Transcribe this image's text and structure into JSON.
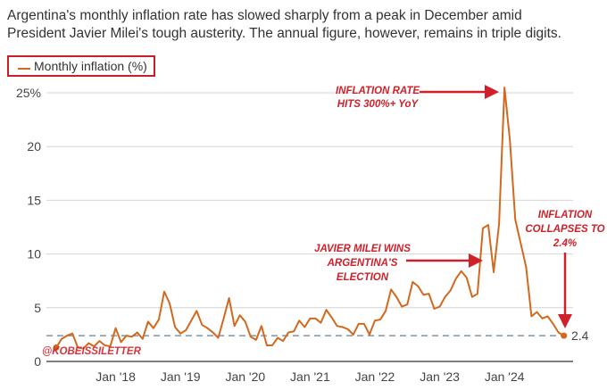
{
  "title_lines": [
    "Argentina's monthly inflation rate has slowed sharply from a peak in December amid",
    "President Javier Milei's tough austerity. The annual figure, however, remains in triple digits."
  ],
  "watermark": "@KOBEISSILETTER",
  "colors": {
    "series": "#d2691e",
    "annotation": "#d0202a",
    "reference_line": "#7f93a8"
  },
  "chart_data": {
    "type": "line",
    "ylim": [
      0,
      25
    ],
    "y_ticks": [
      {
        "value": 0,
        "label": "0"
      },
      {
        "value": 5,
        "label": "5"
      },
      {
        "value": 10,
        "label": "10"
      },
      {
        "value": 15,
        "label": "15"
      },
      {
        "value": 20,
        "label": "20"
      },
      {
        "value": 25,
        "label": "25%"
      }
    ],
    "x_ticks": [
      {
        "date": "2018-01",
        "label": "Jan '18"
      },
      {
        "date": "2019-01",
        "label": "Jan '19"
      },
      {
        "date": "2020-01",
        "label": "Jan '20"
      },
      {
        "date": "2021-01",
        "label": "Jan '21"
      },
      {
        "date": "2022-01",
        "label": "Jan '22"
      },
      {
        "date": "2023-01",
        "label": "Jan '23"
      },
      {
        "date": "2024-01",
        "label": "Jan '24"
      }
    ],
    "grid": true,
    "legend": {
      "position": "top-left",
      "entries": [
        "Monthly inflation (%)"
      ]
    },
    "series": [
      {
        "name": "Monthly inflation (%)",
        "start": "2017-01",
        "values": [
          1.3,
          2.1,
          2.4,
          2.6,
          1.3,
          1.2,
          1.7,
          1.4,
          1.9,
          1.5,
          1.4,
          3.1,
          1.8,
          2.4,
          2.3,
          2.7,
          2.1,
          3.7,
          3.1,
          3.9,
          6.5,
          5.4,
          3.2,
          2.6,
          2.9,
          3.8,
          4.7,
          3.4,
          3.1,
          2.7,
          2.2,
          4.0,
          5.9,
          3.3,
          4.3,
          3.7,
          2.3,
          2.0,
          3.3,
          1.5,
          1.5,
          2.2,
          1.9,
          2.7,
          2.8,
          3.8,
          3.2,
          4.0,
          4.0,
          3.6,
          4.8,
          4.1,
          3.3,
          3.2,
          3.0,
          2.5,
          3.5,
          3.5,
          2.5,
          3.8,
          3.9,
          4.7,
          6.7,
          6.0,
          5.1,
          5.3,
          7.4,
          7.0,
          6.2,
          6.3,
          4.9,
          5.1,
          6.0,
          6.6,
          7.7,
          8.4,
          7.8,
          6.0,
          6.3,
          12.4,
          12.7,
          8.3,
          12.8,
          25.5,
          20.6,
          13.2,
          11.0,
          8.8,
          4.2,
          4.6,
          4.0,
          4.2,
          3.5,
          2.7,
          2.4
        ]
      }
    ],
    "reference_line": {
      "value": 2.4,
      "label": "2.4",
      "style": "dashed"
    },
    "annotations": [
      {
        "lines": [
          "INFLATION RATE",
          "HITS 300%+ YoY"
        ],
        "arrow": "right",
        "points_to": "2023-12"
      },
      {
        "lines": [
          "JAVIER MILEI WINS",
          "ARGENTINA'S",
          "ELECTION"
        ],
        "arrow": "right",
        "points_to": "2023-11"
      },
      {
        "lines": [
          "INFLATION",
          "COLLAPSES TO",
          "2.4%"
        ],
        "arrow": "down",
        "points_to": "2024-11"
      }
    ]
  }
}
